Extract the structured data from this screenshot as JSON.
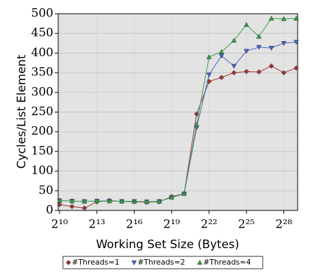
{
  "chart_data": {
    "type": "line",
    "x_label": "Working Set Size (Bytes)",
    "y_label": "Cycles/List Element",
    "x": [
      1024,
      2048,
      4096,
      8192,
      16384,
      32768,
      65536,
      131072,
      262144,
      524288,
      1048576,
      2097152,
      4194304,
      8388608,
      16777216,
      33554432,
      67108864,
      134217728,
      268435456,
      536870912
    ],
    "xscale": "log2",
    "xlim": [
      1024,
      536870912
    ],
    "xticks": [
      {
        "value": 1024,
        "label": "2¹⁰"
      },
      {
        "value": 8192,
        "label": "2¹³"
      },
      {
        "value": 65536,
        "label": "2¹⁶"
      },
      {
        "value": 524288,
        "label": "2¹⁹"
      },
      {
        "value": 4194304,
        "label": "2²²"
      },
      {
        "value": 33554432,
        "label": "2²⁵"
      },
      {
        "value": 268435456,
        "label": "2²⁸"
      }
    ],
    "ylim": [
      0,
      500
    ],
    "yticks": [
      0,
      50,
      100,
      150,
      200,
      250,
      300,
      350,
      400,
      450,
      500
    ],
    "grid": true,
    "legend": "bottom",
    "series": [
      {
        "name": "#Threads=1",
        "color": "#a03232",
        "marker": "diamond",
        "values": [
          15,
          10,
          6,
          22,
          25,
          23,
          22,
          21,
          22,
          35,
          43,
          245,
          328,
          338,
          350,
          353,
          352,
          367,
          350,
          362
        ]
      },
      {
        "name": "#Threads=2",
        "color": "#4662c8",
        "marker": "triangle-down",
        "values": [
          25,
          24,
          23,
          24,
          24,
          23,
          23,
          22,
          23,
          33,
          42,
          210,
          345,
          393,
          367,
          405,
          415,
          413,
          425,
          428
        ]
      },
      {
        "name": "#Threads=4",
        "color": "#32a046",
        "marker": "triangle-up",
        "values": [
          25,
          24,
          23,
          24,
          24,
          23,
          23,
          22,
          23,
          33,
          43,
          218,
          390,
          403,
          432,
          472,
          442,
          488,
          487,
          488
        ]
      }
    ]
  }
}
